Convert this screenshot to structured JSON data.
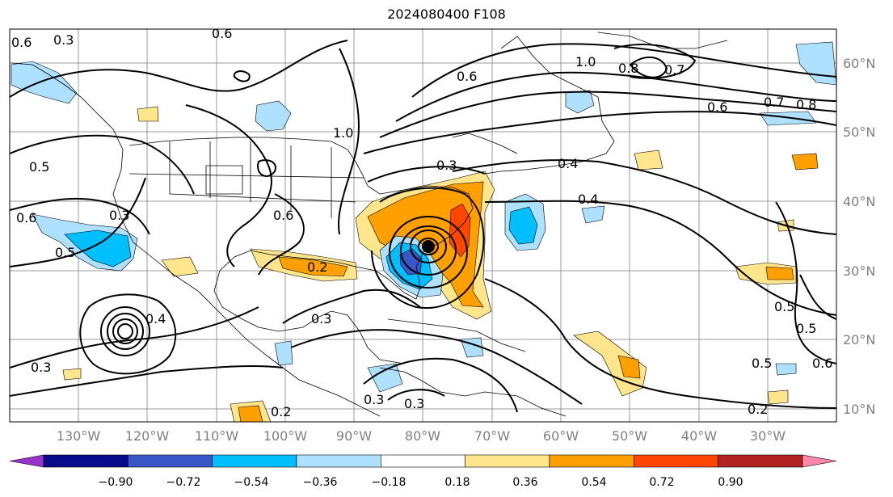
{
  "title": "2024080400 F108",
  "lat_labels": [
    "60°N",
    "50°N",
    "40°N",
    "30°N",
    "20°N",
    "10°N"
  ],
  "lon_labels": [
    "130°W",
    "120°W",
    "110°W",
    "100°W",
    "90°W",
    "80°W",
    "70°W",
    "60°W",
    "50°W",
    "40°W",
    "30°W"
  ],
  "colorbar": {
    "colors": [
      "#9933cc",
      "#0a0a8c",
      "#3a57c8",
      "#00bfff",
      "#aee0ff",
      "#ffffff",
      "#ffe68c",
      "#ffa000",
      "#ff4500",
      "#b22222",
      "#ff88aa"
    ],
    "ticks": [
      "−0.90",
      "−0.72",
      "−0.54",
      "−0.36",
      "−0.18",
      "0.18",
      "0.36",
      "0.54",
      "0.72",
      "0.90"
    ]
  },
  "contour_labels": [
    "0.6",
    "0.5",
    "0.3",
    "0.4",
    "0.3",
    "0.2",
    "0.6",
    "0.5",
    "1.0",
    "0.8",
    "0.7",
    "0.6",
    "0.7",
    "0.8",
    "0.4",
    "0.4",
    "0.3",
    "0.6",
    "0.5",
    "0.6",
    "0.3",
    "0.3",
    "0.6",
    "0.5",
    "0.5",
    "0.2",
    "0.2",
    "0.3",
    "0.6",
    "0.3",
    "1.0"
  ],
  "colors": {
    "shading_blue": "#00bfff",
    "shading_lightblue": "#aee0ff",
    "shading_yellow": "#ffe68c",
    "shading_orange": "#ffa000",
    "shading_red": "#ff4500"
  }
}
